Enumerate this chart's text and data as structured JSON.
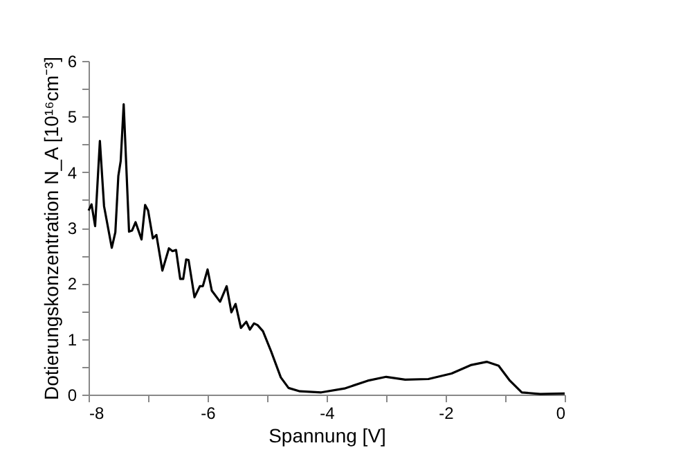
{
  "chart_data": {
    "type": "line",
    "xlabel": "Spannung [V]",
    "ylabel": "Dotierungskonzentration N_A [10¹⁶cm⁻³]",
    "xlim": [
      -8,
      0
    ],
    "ylim": [
      0,
      6
    ],
    "xticks": [
      -8,
      {
        "value": -7,
        "label": null
      },
      -6,
      {
        "value": -5,
        "label": null
      },
      -4,
      {
        "value": -3,
        "label": null
      },
      -2,
      {
        "value": -1,
        "label": null
      },
      0
    ],
    "yticks": [
      0,
      {
        "value": 0.5,
        "label": null
      },
      1,
      {
        "value": 1.5,
        "label": null
      },
      2,
      {
        "value": 2.5,
        "label": null
      },
      3,
      {
        "value": 3.5,
        "label": null
      },
      4,
      {
        "value": 4.5,
        "label": null
      },
      5,
      {
        "value": 5.5,
        "label": null
      },
      6
    ],
    "grid": false,
    "marker": "none",
    "line_style": "solid",
    "series": [
      {
        "color": "#000000",
        "x": [
          -8,
          -7.95,
          -7.89,
          -7.81,
          -7.74,
          -7.61,
          -7.55,
          -7.5,
          -7.46,
          -7.41,
          -7.32,
          -7.27,
          -7.21,
          -7.11,
          -7.05,
          -7.0,
          -6.92,
          -6.86,
          -6.76,
          -6.65,
          -6.59,
          -6.53,
          -6.46,
          -6.41,
          -6.36,
          -6.32,
          -6.22,
          -6.13,
          -6.08,
          -6.0,
          -5.93,
          -5.79,
          -5.68,
          -5.6,
          -5.53,
          -5.44,
          -5.35,
          -5.29,
          -5.22,
          -5.16,
          -5.07,
          -4.93,
          -4.77,
          -4.64,
          -4.45,
          -4.09,
          -3.7,
          -3.31,
          -3.0,
          -2.68,
          -2.29,
          -1.9,
          -1.58,
          -1.31,
          -1.11,
          -0.92,
          -0.72,
          -0.41,
          0
        ],
        "values": [
          3.31,
          3.42,
          3.03,
          4.56,
          3.39,
          2.64,
          2.92,
          3.93,
          4.2,
          5.22,
          2.93,
          2.95,
          3.1,
          2.79,
          3.41,
          3.31,
          2.81,
          2.87,
          2.23,
          2.63,
          2.58,
          2.6,
          2.08,
          2.08,
          2.43,
          2.42,
          1.75,
          1.95,
          1.95,
          2.25,
          1.87,
          1.67,
          1.95,
          1.48,
          1.63,
          1.2,
          1.31,
          1.17,
          1.28,
          1.25,
          1.14,
          0.77,
          0.31,
          0.12,
          0.06,
          0.04,
          0.11,
          0.25,
          0.32,
          0.27,
          0.28,
          0.38,
          0.53,
          0.59,
          0.52,
          0.25,
          0.04,
          0.01,
          0.02
        ]
      }
    ]
  }
}
